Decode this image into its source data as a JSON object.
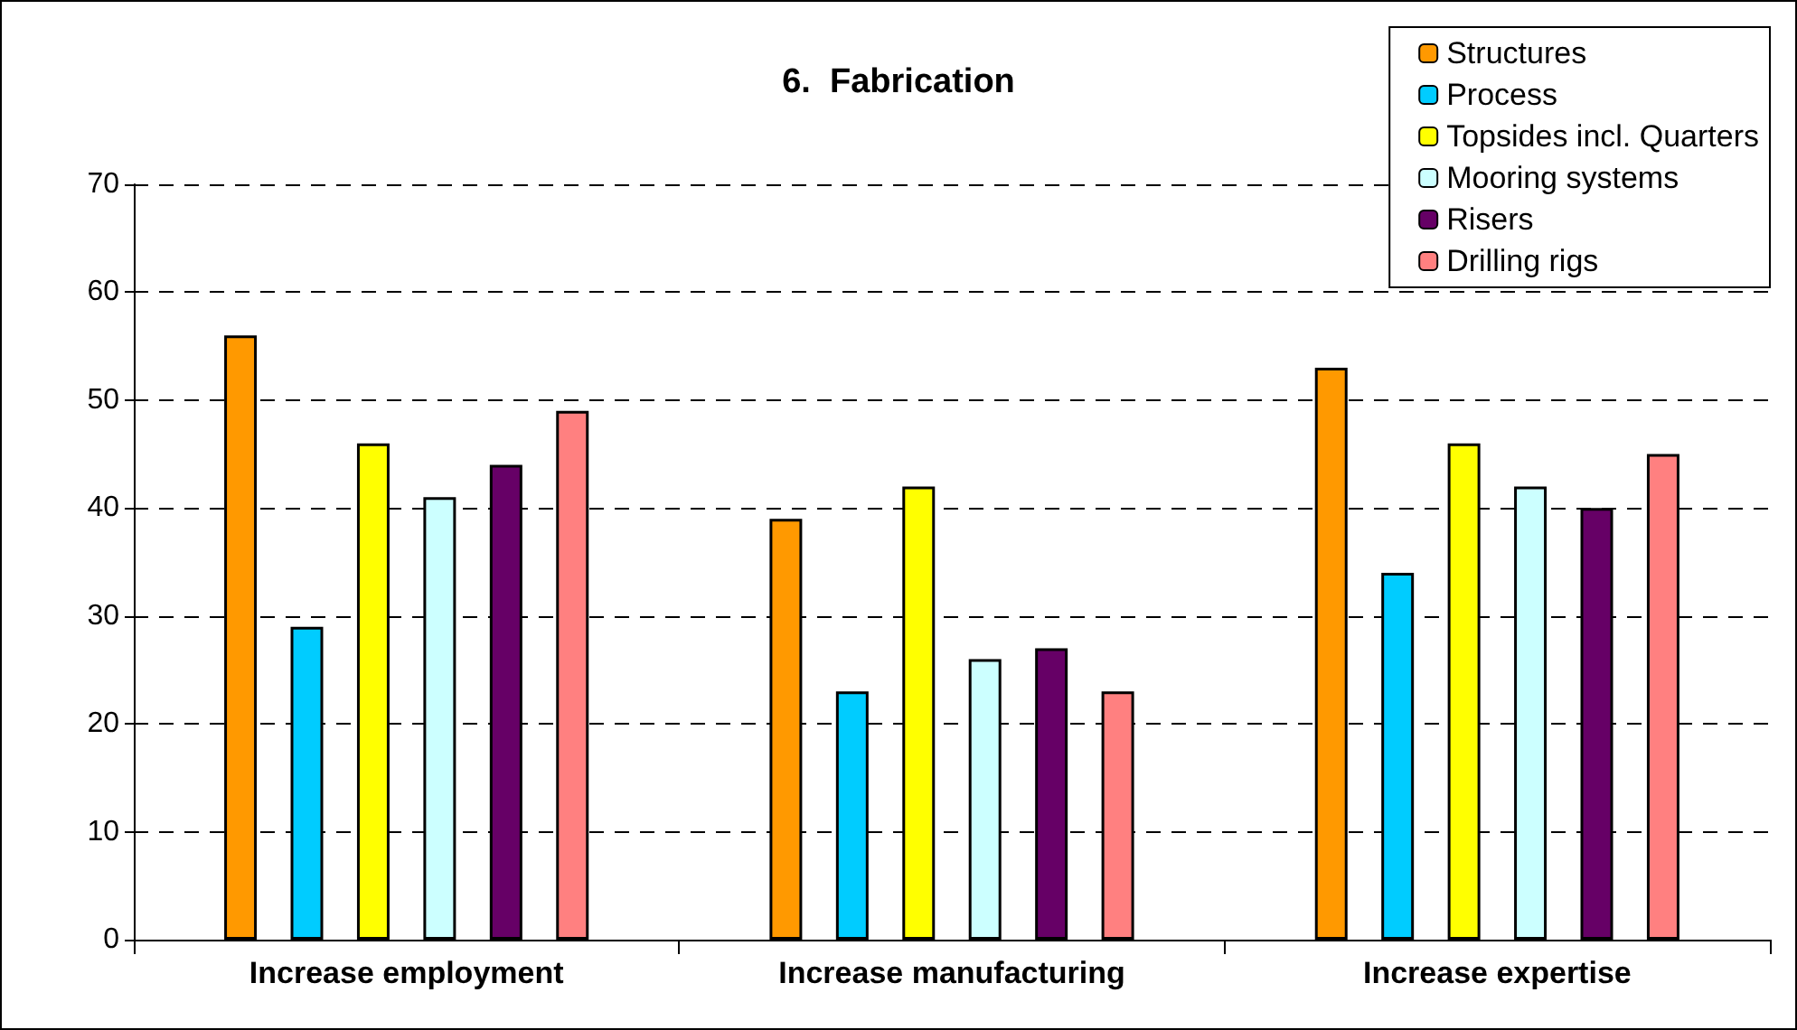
{
  "chart_data": {
    "type": "bar",
    "title": "6.  Fabrication",
    "categories": [
      "Increase employment",
      "Increase manufacturing",
      "Increase expertise"
    ],
    "series": [
      {
        "name": "Structures",
        "color": "#ff9900",
        "values": [
          56,
          39,
          53
        ]
      },
      {
        "name": "Process",
        "color": "#00ccff",
        "values": [
          29,
          23,
          34
        ]
      },
      {
        "name": "Topsides incl. Quarters",
        "color": "#ffff00",
        "values": [
          46,
          42,
          46
        ]
      },
      {
        "name": "Mooring systems",
        "color": "#ccffff",
        "values": [
          41,
          26,
          42
        ]
      },
      {
        "name": "Risers",
        "color": "#660066",
        "values": [
          44,
          27,
          40
        ]
      },
      {
        "name": "Drilling rigs",
        "color": "#ff8080",
        "values": [
          49,
          23,
          45
        ]
      }
    ],
    "ylim": [
      0,
      70
    ],
    "yticks": [
      0,
      10,
      20,
      30,
      40,
      50,
      60,
      70
    ],
    "grid": "y",
    "legend": "top right"
  }
}
